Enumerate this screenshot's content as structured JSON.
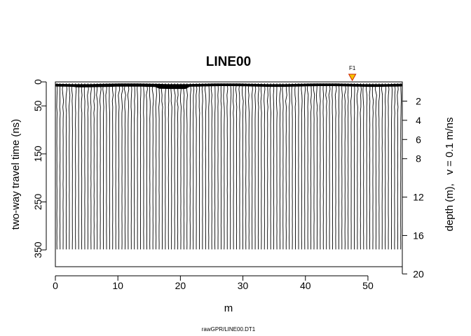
{
  "chart_data": {
    "type": "radargram",
    "title": "LINE00",
    "xlabel": "m",
    "ylabel": "two-way travel time (ns)",
    "ylabel_right": "depth (m),   v = 0.1 m/ns",
    "source": "rawGPR/LINE00.DT1",
    "xlim": [
      0,
      55.5
    ],
    "ylim_time": [
      0,
      385
    ],
    "trace_time_max": 349,
    "trace_count": 112,
    "x_ticks": [
      0,
      10,
      20,
      30,
      40,
      50
    ],
    "x_tick_labels": [
      "0",
      "10",
      "20",
      "30",
      "40",
      "50"
    ],
    "y_ticks": [
      0,
      50,
      150,
      250,
      350
    ],
    "y_tick_labels": [
      "0",
      "50",
      "150",
      "250",
      "350"
    ],
    "depth_ticks": [
      2,
      4,
      6,
      8,
      12,
      16,
      20
    ],
    "depth_tick_labels": [
      "2",
      "4",
      "6",
      "8",
      "12",
      "16",
      "20"
    ],
    "velocity_m_per_ns": 0.1,
    "fiducial": {
      "label": "F1",
      "x": 47.5,
      "color": "#f5c400"
    },
    "trace_color": "#000000"
  }
}
